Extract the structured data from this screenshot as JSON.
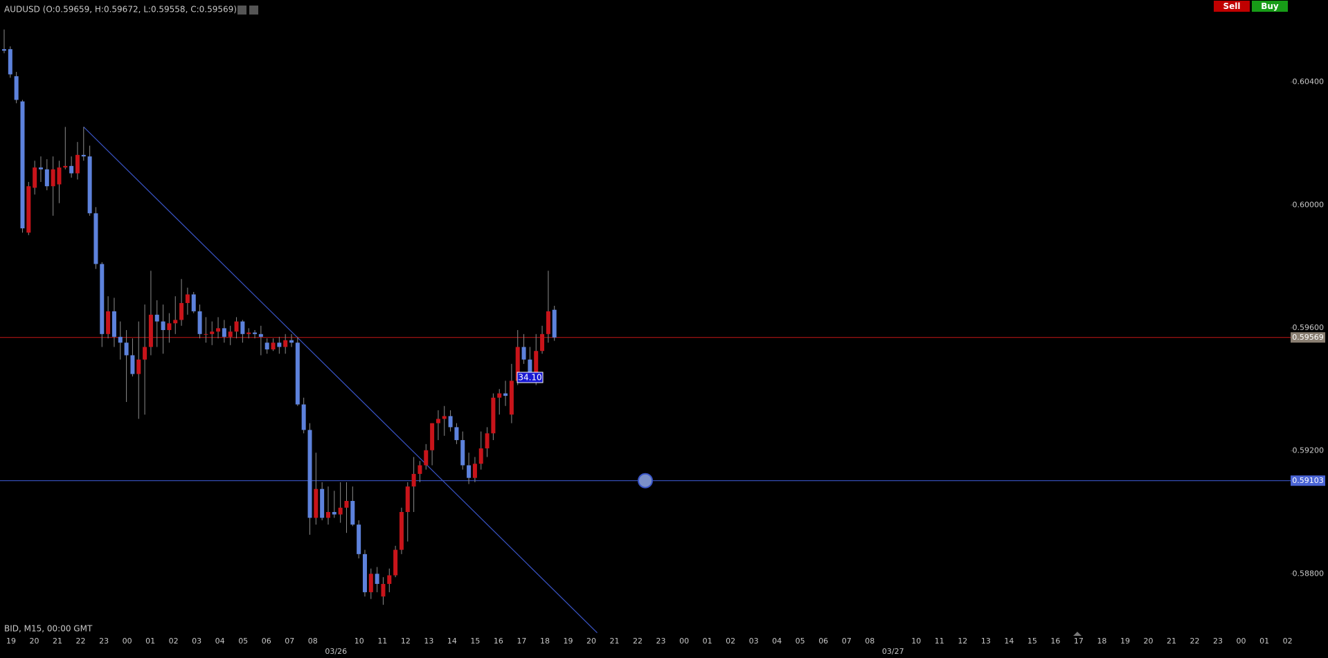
{
  "chart_data": {
    "type": "candlestick",
    "title": "AUDUSD (O:0.59659, H:0.59672, L:0.59558, C:0.59569)",
    "subtitle": "BID, M15, 00:00 GMT",
    "annotation": "34.10",
    "x_labels": [
      "19",
      "20",
      "21",
      "22",
      "23",
      "00",
      "01",
      "02",
      "03",
      "04",
      "05",
      "06",
      "07",
      "08",
      null,
      "10",
      "11",
      "12",
      "13",
      "14",
      "15",
      "16",
      "17",
      "18",
      "19",
      "20",
      "21",
      "22",
      "23",
      "00",
      "01",
      "02",
      "03",
      "04",
      "05",
      "06",
      "07",
      "08",
      null,
      "10",
      "11",
      "12",
      "13",
      "14",
      "15",
      "16",
      "17",
      "18",
      "19",
      "20",
      "21",
      "22",
      "23",
      "00",
      "01",
      "02"
    ],
    "date_labels": [
      "03/26",
      "03/27"
    ],
    "open": [
      0.60507,
      0.60507,
      0.60419,
      0.60337,
      0.5991,
      0.60056,
      0.60122,
      0.60116,
      0.60061,
      0.60067,
      0.60122,
      0.60127,
      0.60103,
      0.60163,
      0.60158,
      0.59973,
      0.59808,
      0.5958,
      0.59654,
      0.59571,
      0.59552,
      0.59511,
      0.5945,
      0.59497,
      0.59538,
      0.59643,
      0.59621,
      0.59593,
      0.59615,
      0.59626,
      0.59681,
      0.59709,
      0.59654,
      0.5958,
      0.5958,
      0.59588,
      0.59599,
      0.59571,
      0.59588,
      0.59621,
      0.5958,
      0.59585,
      0.5958,
      0.59552,
      0.5953,
      0.59552,
      0.59538,
      0.5956,
      0.59552,
      0.59351,
      0.59268,
      0.58982,
      0.59076,
      0.58982,
      0.59001,
      0.58993,
      0.59015,
      0.59037,
      0.5896,
      0.58864,
      0.5874,
      0.588,
      0.58726,
      0.58767,
      0.58795,
      0.58878,
      0.59001,
      0.59084,
      0.59125,
      0.59153,
      0.59202,
      0.5929,
      0.59304,
      0.59313,
      0.59277,
      0.59235,
      0.59153,
      0.59112,
      0.59158,
      0.59208,
      0.59257,
      0.59373,
      0.59387,
      0.59318,
      0.59428,
      0.59538,
      0.59497,
      0.59456,
      0.59525,
      0.5958,
      0.59659
    ],
    "high": [
      0.60571,
      0.60516,
      0.60433,
      0.60342,
      0.60075,
      0.60144,
      0.60158,
      0.60149,
      0.60158,
      0.60144,
      0.60254,
      0.60158,
      0.60205,
      0.60254,
      0.60193,
      0.59993,
      0.59814,
      0.59703,
      0.59698,
      0.59621,
      0.59593,
      0.59566,
      0.59621,
      0.59676,
      0.59786,
      0.5969,
      0.59676,
      0.59648,
      0.59703,
      0.59759,
      0.59731,
      0.59717,
      0.59676,
      0.59635,
      0.59621,
      0.59635,
      0.59626,
      0.59607,
      0.59635,
      0.59626,
      0.59599,
      0.59593,
      0.59607,
      0.59566,
      0.59566,
      0.59571,
      0.5958,
      0.5958,
      0.59571,
      0.59373,
      0.5929,
      0.59194,
      0.59098,
      0.59084,
      0.5907,
      0.59098,
      0.59098,
      0.59084,
      0.58974,
      0.58878,
      0.58817,
      0.58822,
      0.58789,
      0.58817,
      0.58891,
      0.59015,
      0.59098,
      0.5918,
      0.59167,
      0.59222,
      0.5929,
      0.59332,
      0.59346,
      0.59332,
      0.5929,
      0.59263,
      0.59194,
      0.5918,
      0.59263,
      0.59277,
      0.59387,
      0.59401,
      0.59428,
      0.59483,
      0.59593,
      0.5958,
      0.59538,
      0.5958,
      0.59607,
      0.59786,
      0.59672
    ],
    "low": [
      0.60494,
      0.60414,
      0.60331,
      0.5991,
      0.59902,
      0.60034,
      0.60075,
      0.60048,
      0.59965,
      0.60006,
      0.60116,
      0.60089,
      0.60083,
      0.60144,
      0.59965,
      0.59792,
      0.59538,
      0.59566,
      0.59538,
      0.59497,
      0.59359,
      0.59442,
      0.59304,
      0.59318,
      0.59511,
      0.59538,
      0.59516,
      0.59552,
      0.5958,
      0.59607,
      0.59643,
      0.59648,
      0.59566,
      0.59552,
      0.59544,
      0.59566,
      0.59552,
      0.59544,
      0.59566,
      0.59552,
      0.59566,
      0.59566,
      0.59511,
      0.59516,
      0.59525,
      0.59516,
      0.59516,
      0.59538,
      0.59346,
      0.59257,
      0.58927,
      0.5896,
      0.58974,
      0.5896,
      0.58982,
      0.58966,
      0.58933,
      0.58955,
      0.5885,
      0.58726,
      0.58718,
      0.5874,
      0.58699,
      0.5874,
      0.58789,
      0.58864,
      0.58905,
      0.59001,
      0.59098,
      0.59139,
      0.59153,
      0.59235,
      0.59249,
      0.59263,
      0.59222,
      0.59139,
      0.59092,
      0.59098,
      0.59139,
      0.5918,
      0.59235,
      0.59318,
      0.59346,
      0.5929,
      0.59414,
      0.59483,
      0.59428,
      0.59414,
      0.59516,
      0.59552,
      0.59558
    ],
    "close": [
      0.60502,
      0.60425,
      0.60342,
      0.59924,
      0.60061,
      0.60122,
      0.60116,
      0.60061,
      0.60116,
      0.60122,
      0.60127,
      0.60103,
      0.60163,
      0.60158,
      0.59973,
      0.59808,
      0.5958,
      0.59654,
      0.59571,
      0.59552,
      0.59511,
      0.5945,
      0.59497,
      0.59538,
      0.59643,
      0.59621,
      0.59593,
      0.59615,
      0.59626,
      0.59681,
      0.59709,
      0.59654,
      0.5958,
      0.5958,
      0.59588,
      0.59599,
      0.59571,
      0.59588,
      0.59621,
      0.5958,
      0.59585,
      0.5958,
      0.59571,
      0.5953,
      0.59552,
      0.59538,
      0.5956,
      0.59552,
      0.59351,
      0.59268,
      0.58982,
      0.59076,
      0.58982,
      0.59001,
      0.58993,
      0.59015,
      0.59037,
      0.5896,
      0.58864,
      0.5874,
      0.588,
      0.58767,
      0.58767,
      0.58795,
      0.58878,
      0.59001,
      0.59084,
      0.59125,
      0.59153,
      0.59202,
      0.5929,
      0.59304,
      0.59313,
      0.59277,
      0.59235,
      0.59153,
      0.59112,
      0.59158,
      0.59208,
      0.59257,
      0.59373,
      0.59387,
      0.59379,
      0.59428,
      0.59538,
      0.59497,
      0.59456,
      0.59525,
      0.5958,
      0.59654,
      0.59569
    ],
    "up_color": "#c8141a",
    "down_color": "#5d82dc",
    "ylim": [
      0.58616,
      0.60667
    ],
    "yticks": [
      {
        "value": 0.588,
        "label": "0.58800"
      },
      {
        "value": 0.592,
        "label": "0.59200"
      },
      {
        "value": 0.596,
        "label": "0.59600"
      },
      {
        "value": 0.6,
        "label": "0.60000"
      },
      {
        "value": 0.604,
        "label": "0.60400"
      }
    ],
    "lines": [
      {
        "value": 0.59569,
        "color": "#b01414"
      },
      {
        "value": 0.59103,
        "color": "#3a55c8"
      }
    ],
    "trendline": {
      "x": [
        13,
        97
      ],
      "y": [
        0.60254,
        0.58608
      ],
      "color": "#3a55c8"
    }
  },
  "ui": {
    "buttons": [
      "Sell",
      "Buy"
    ]
  }
}
